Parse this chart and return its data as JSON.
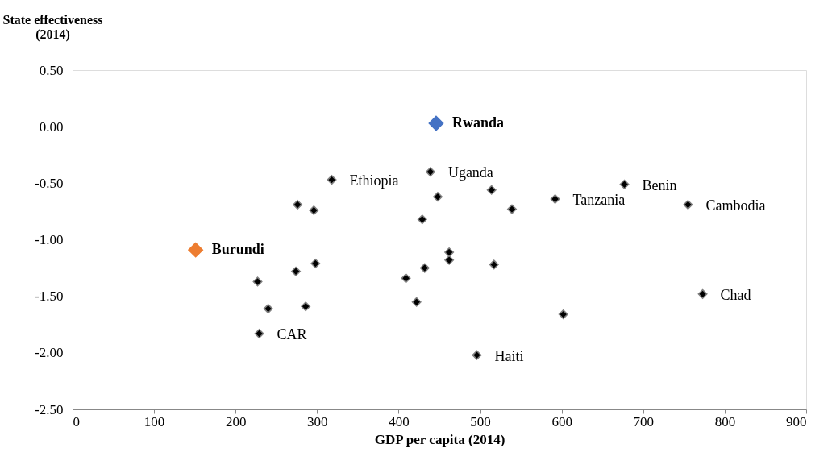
{
  "chart_data": {
    "type": "scatter",
    "xlabel": "GDP per capita (2014)",
    "ylabel": "State effectiveness\n(2014)",
    "xlim": [
      0,
      900
    ],
    "xticks": [
      0,
      100,
      200,
      300,
      400,
      500,
      600,
      700,
      800,
      900
    ],
    "ylim": [
      -2.5,
      0.5
    ],
    "yticks": [
      {
        "value": -2.5,
        "label": "-2.50"
      },
      {
        "value": -2,
        "label": "-2.00"
      },
      {
        "value": -1.5,
        "label": "-1.50"
      },
      {
        "value": -1,
        "label": "-1.00"
      },
      {
        "value": -0.5,
        "label": "-0.50"
      },
      {
        "value": 0,
        "label": "0.00"
      },
      {
        "value": 0.5,
        "label": "0.50"
      }
    ],
    "grid": false,
    "marker": "diamond",
    "series": [
      {
        "color": "#000000",
        "x": [
          318,
          276,
          296,
          439,
          448,
          429,
          514,
          539,
          592,
          677,
          755,
          462,
          462,
          298,
          274,
          432,
          517,
          409,
          227,
          422,
          240,
          286,
          773,
          602,
          229,
          496
        ],
        "values": [
          -0.47,
          -0.69,
          -0.74,
          -0.4,
          -0.62,
          -0.82,
          -0.56,
          -0.73,
          -0.64,
          -0.51,
          -0.69,
          -1.11,
          -1.18,
          -1.21,
          -1.28,
          -1.25,
          -1.22,
          -1.34,
          -1.37,
          -1.55,
          -1.61,
          -1.59,
          -1.48,
          -1.66,
          -1.83,
          -2.02
        ]
      },
      {
        "name": "Rwanda",
        "color": "#4472c4",
        "x": [
          446
        ],
        "values": [
          0.03
        ]
      },
      {
        "name": "Burundi",
        "color": "#ed7d31",
        "x": [
          151
        ],
        "values": [
          -1.09
        ]
      }
    ],
    "annotations": [
      {
        "text": "Ethiopia",
        "x": 318,
        "y": -0.47
      },
      {
        "text": "Uganda",
        "x": 439,
        "y": -0.4
      },
      {
        "text": "Tanzania",
        "x": 592,
        "y": -0.64
      },
      {
        "text": "Benin",
        "x": 677,
        "y": -0.51
      },
      {
        "text": "Cambodia",
        "x": 755,
        "y": -0.69
      },
      {
        "text": "Chad",
        "x": 773,
        "y": -1.48
      },
      {
        "text": "CAR",
        "x": 229,
        "y": -1.83
      },
      {
        "text": "Haiti",
        "x": 496,
        "y": -2.02
      }
    ]
  }
}
